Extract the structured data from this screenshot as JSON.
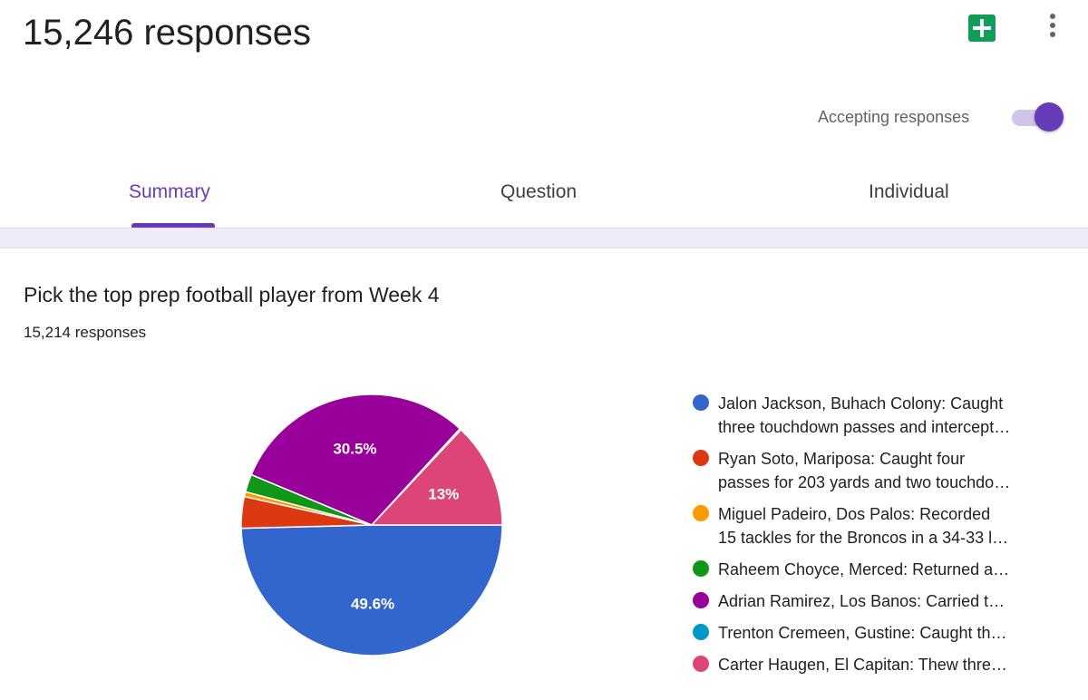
{
  "header": {
    "title": "15,246 responses",
    "sheets_icon": "sheets-plus-icon",
    "more_icon": "more-vert-icon",
    "accepting_label": "Accepting responses",
    "accepting_on": true,
    "accent_color": "#673ab7"
  },
  "tabs": [
    {
      "label": "Summary",
      "active": true
    },
    {
      "label": "Question",
      "active": false
    },
    {
      "label": "Individual",
      "active": false
    }
  ],
  "question": {
    "title": "Pick the top prep football player from Week 4",
    "count": "15,214 responses"
  },
  "legend": [
    {
      "line1": "Jalon Jackson, Buhach Colony: Caught",
      "line2": "three touchdown passes and intercept…"
    },
    {
      "line1": "Ryan Soto, Mariposa: Caught four",
      "line2": "passes for 203 yards and two touchdo…"
    },
    {
      "line1": "Miguel Padeiro, Dos Palos: Recorded",
      "line2": "15 tackles for the Broncos in a 34-33 l…"
    },
    {
      "line1": "Raheem Choyce, Merced: Returned a…",
      "line2": ""
    },
    {
      "line1": "Adrian Ramirez, Los Banos: Carried t…",
      "line2": ""
    },
    {
      "line1": "Trenton Cremeen, Gustine: Caught th…",
      "line2": ""
    },
    {
      "line1": "Carter Haugen, El Capitan: Thew thre…",
      "line2": ""
    }
  ],
  "chart_data": {
    "type": "pie",
    "title": "",
    "slices": [
      {
        "name": "Jalon Jackson, Buhach Colony",
        "value": 49.6,
        "color": "#3366cc",
        "label": "49.6%"
      },
      {
        "name": "Ryan Soto, Mariposa",
        "value": 3.9,
        "color": "#dc3912",
        "label": ""
      },
      {
        "name": "Miguel Padeiro, Dos Palos",
        "value": 0.6,
        "color": "#ff9900",
        "label": ""
      },
      {
        "name": "Raheem Choyce, Merced",
        "value": 2.2,
        "color": "#109618",
        "label": ""
      },
      {
        "name": "Adrian Ramirez, Los Banos",
        "value": 30.5,
        "color": "#990099",
        "label": "30.5%"
      },
      {
        "name": "Trenton Cremeen, Gustine",
        "value": 0.2,
        "color": "#0099c6",
        "label": ""
      },
      {
        "name": "Carter Haugen, El Capitan",
        "value": 13,
        "color": "#dd4477",
        "label": "13%"
      }
    ],
    "legend_position": "right"
  }
}
